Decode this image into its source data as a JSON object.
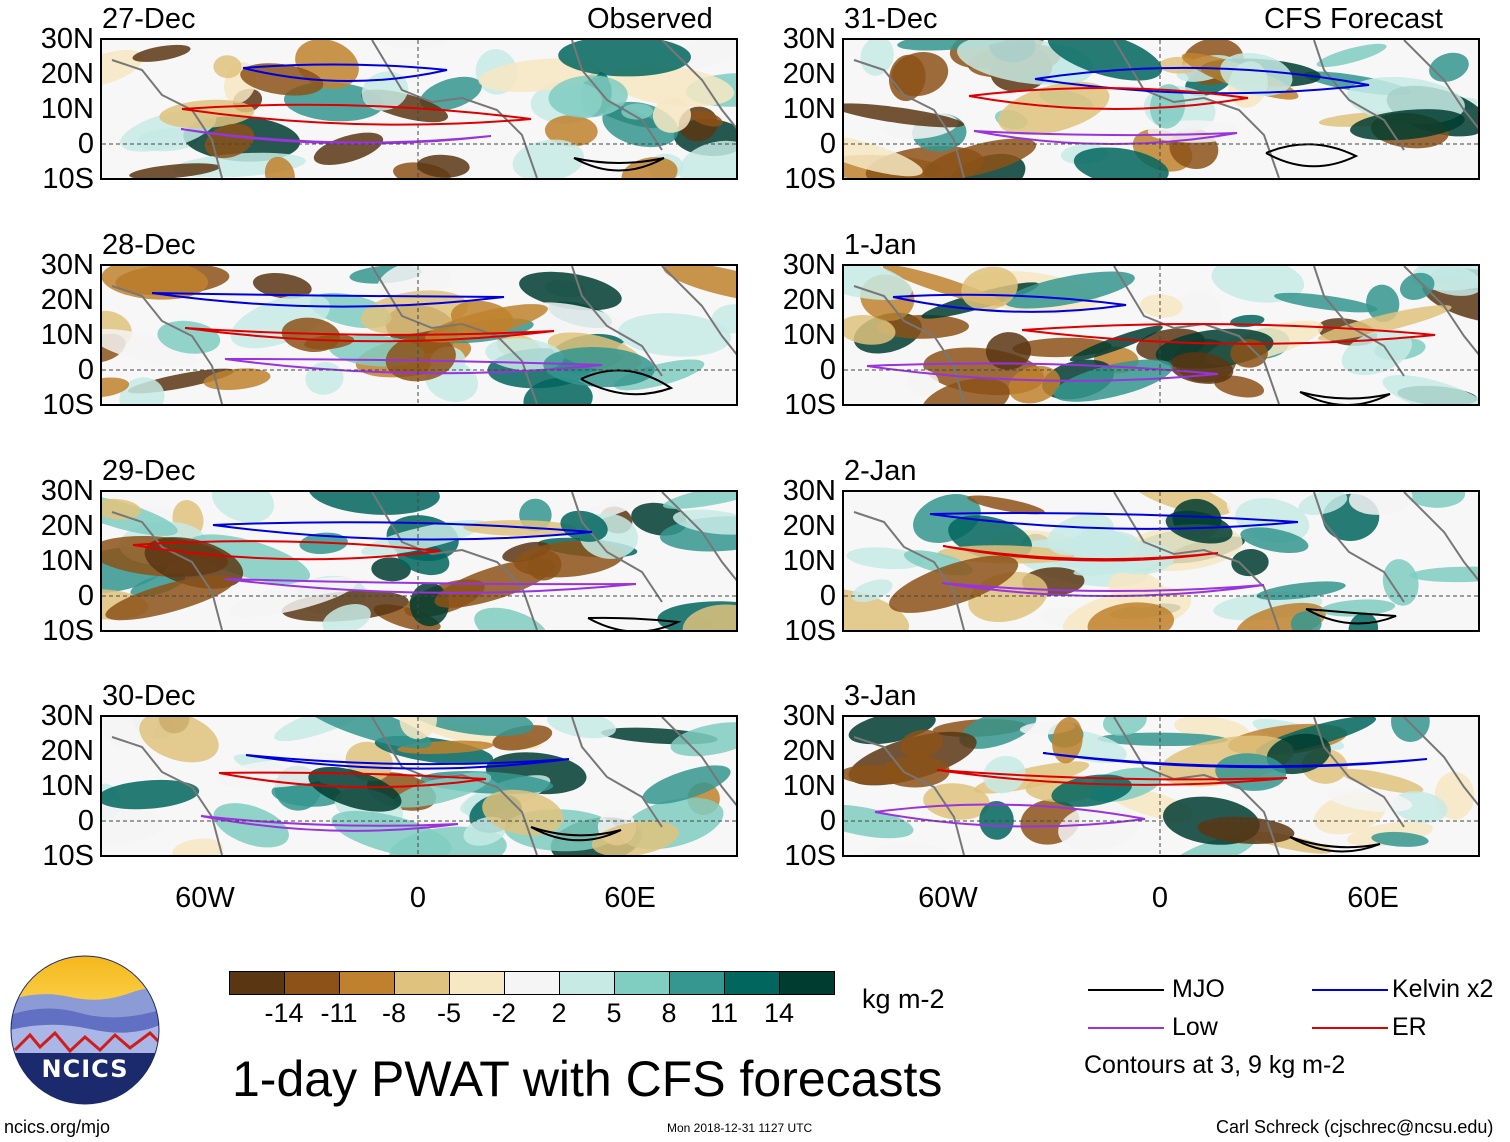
{
  "columns": {
    "left_header": "Observed",
    "right_header": "CFS Forecast"
  },
  "panels": [
    {
      "date": "27-Dec",
      "col": 0,
      "row": 0
    },
    {
      "date": "28-Dec",
      "col": 0,
      "row": 1
    },
    {
      "date": "29-Dec",
      "col": 0,
      "row": 2
    },
    {
      "date": "30-Dec",
      "col": 0,
      "row": 3
    },
    {
      "date": "31-Dec",
      "col": 1,
      "row": 0
    },
    {
      "date": "1-Jan",
      "col": 1,
      "row": 1
    },
    {
      "date": "2-Jan",
      "col": 1,
      "row": 2
    },
    {
      "date": "3-Jan",
      "col": 1,
      "row": 3
    }
  ],
  "lat_labels": [
    "30N",
    "20N",
    "10N",
    "0",
    "10S"
  ],
  "lon_labels": [
    "60W",
    "0",
    "60E"
  ],
  "colorbar": {
    "colors": [
      "#5a3613",
      "#8c5217",
      "#bf812d",
      "#dfc27d",
      "#f6e8c3",
      "#f5f5f5",
      "#c7eae5",
      "#80cdc1",
      "#35978f",
      "#01665e",
      "#003c30"
    ],
    "labels": [
      "-14",
      "-11",
      "-8",
      "-5",
      "-2",
      "2",
      "5",
      "8",
      "11",
      "14"
    ],
    "units": "kg m-2"
  },
  "legend": {
    "items": [
      {
        "label": "MJO",
        "color": "#000000"
      },
      {
        "label": "Kelvin x2",
        "color": "#0000dd"
      },
      {
        "label": "Low",
        "color": "#9933dd"
      },
      {
        "label": "ER",
        "color": "#dd0000"
      }
    ],
    "note": "Contours at 3, 9 kg m-2"
  },
  "title": "1-day PWAT with CFS forecasts",
  "logo_text": "NCICS",
  "footer": {
    "left": "ncics.org/mjo",
    "center": "Mon 2018-12-31 1127 UTC",
    "right": "Carl Schreck (cjschrec@ncsu.edu)"
  }
}
